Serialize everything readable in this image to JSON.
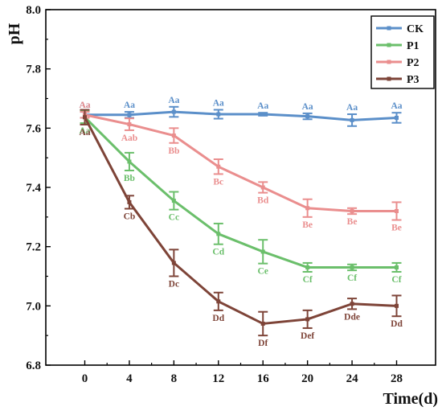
{
  "chart_data": {
    "type": "line",
    "title": "",
    "xlabel": "Time(d)",
    "ylabel": "pH",
    "x": [
      0,
      4,
      8,
      12,
      16,
      20,
      24,
      28
    ],
    "xticks": [
      "0",
      "4",
      "8",
      "12",
      "16",
      "20",
      "24",
      "28"
    ],
    "xlim": [
      -3.5,
      31.5
    ],
    "ylim": [
      6.8,
      8.0
    ],
    "yticks": [
      "6.8",
      "7.0",
      "7.2",
      "7.4",
      "7.6",
      "7.8",
      "8.0"
    ],
    "grid": false,
    "legend_position": "top-right",
    "series": [
      {
        "name": "CK",
        "color": "#5b8fc9",
        "values": [
          7.645,
          7.645,
          7.655,
          7.647,
          7.647,
          7.64,
          7.627,
          7.635
        ],
        "errors": [
          0.01,
          0.01,
          0.017,
          0.015,
          0.005,
          0.01,
          0.02,
          0.017
        ],
        "labels": [
          "Aa",
          "Aa",
          "Aa",
          "Aa",
          "Aa",
          "Aa",
          "Aa",
          "Aa"
        ],
        "label_pos": [
          "above",
          "above",
          "above",
          "above",
          "above",
          "above",
          "above",
          "above"
        ]
      },
      {
        "name": "P1",
        "color": "#6bbf6b",
        "values": [
          7.637,
          7.487,
          7.355,
          7.243,
          7.183,
          7.13,
          7.13,
          7.13
        ],
        "errors": [
          0.02,
          0.03,
          0.03,
          0.035,
          0.04,
          0.015,
          0.01,
          0.015
        ],
        "labels": [
          "Aa",
          "Bb",
          "Cc",
          "Cd",
          "Ce",
          "Cf",
          "Cf",
          "Cf"
        ],
        "label_pos": [
          "below",
          "below",
          "below",
          "below",
          "below",
          "below",
          "below",
          "below"
        ]
      },
      {
        "name": "P2",
        "color": "#ea8e8e",
        "values": [
          7.645,
          7.613,
          7.575,
          7.47,
          7.4,
          7.33,
          7.32,
          7.32
        ],
        "errors": [
          0.01,
          0.02,
          0.025,
          0.025,
          0.018,
          0.03,
          0.01,
          0.03
        ],
        "labels": [
          "Aa",
          "Aab",
          "Bb",
          "Bc",
          "Bd",
          "Be",
          "Be",
          "Be"
        ],
        "label_pos": [
          "above",
          "below",
          "below",
          "below",
          "below",
          "below",
          "below",
          "below"
        ]
      },
      {
        "name": "P3",
        "color": "#7e4438",
        "values": [
          7.637,
          7.35,
          7.145,
          7.015,
          6.94,
          6.955,
          7.007,
          7.0
        ],
        "errors": [
          0.025,
          0.022,
          0.045,
          0.03,
          0.04,
          0.03,
          0.018,
          0.035
        ],
        "labels": [
          "Aa",
          "Cb",
          "Dc",
          "Dd",
          "Df",
          "Def",
          "Dde",
          "Dd"
        ],
        "label_pos": [
          "below",
          "below",
          "below",
          "below",
          "below",
          "below",
          "below",
          "below"
        ]
      }
    ]
  }
}
